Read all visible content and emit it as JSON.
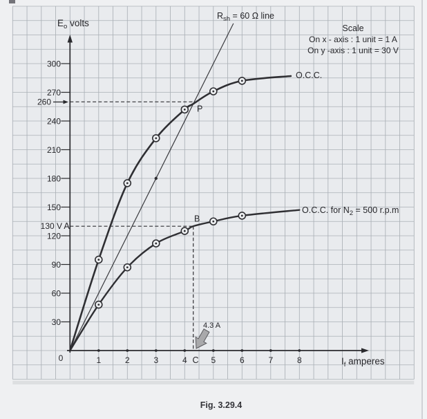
{
  "figure": {
    "caption": "Fig. 3.29.4"
  },
  "chart_data": {
    "type": "line",
    "grid": "on",
    "axes": {
      "x_title": {
        "pre": "I",
        "sub": "f",
        "rest": " amperes"
      },
      "y_title": {
        "pre": "E",
        "sub": "o",
        "rest": " volts"
      },
      "x_ticks": [
        "1",
        "2",
        "3",
        "4",
        "5",
        "6",
        "7",
        "8"
      ],
      "y_ticks": [
        "30",
        "60",
        "90",
        "120",
        "150",
        "180",
        "210",
        "240",
        "270",
        "300"
      ],
      "origin": "0",
      "xlim": [
        0,
        8.6
      ],
      "ylim": [
        0,
        330
      ]
    },
    "scale_note": {
      "title": "Scale",
      "line1": "On x - axis : 1 unit = 1 A",
      "line2": "On y -axis : 1 unit = 30 V"
    },
    "series": [
      {
        "name": "O.C.C.",
        "label": {
          "pre": "O.C.C.",
          "sub": "",
          "rest": ""
        },
        "points": [
          [
            0,
            0
          ],
          [
            1,
            95
          ],
          [
            2,
            175
          ],
          [
            3,
            222
          ],
          [
            4,
            252
          ],
          [
            4.3,
            258
          ],
          [
            5,
            271
          ],
          [
            6,
            282
          ],
          [
            7.7,
            287
          ]
        ],
        "marker_x": [
          1,
          2,
          3,
          4,
          5,
          6
        ]
      },
      {
        "name": "O.C.C. for N2 = 500 r.p.m",
        "label": {
          "pre": "O.C.C. for N",
          "sub": "2",
          "rest": " = 500 r.p.m"
        },
        "points": [
          [
            0,
            0
          ],
          [
            1,
            48
          ],
          [
            2,
            87
          ],
          [
            3,
            112
          ],
          [
            4,
            125
          ],
          [
            4.3,
            130
          ],
          [
            5,
            135
          ],
          [
            6,
            141
          ],
          [
            8,
            147
          ]
        ],
        "marker_x": [
          1,
          2,
          3,
          4,
          5,
          6
        ]
      },
      {
        "name": "Rsh = 60 ohm line",
        "label": {
          "pre": "R",
          "sub": "sh",
          "rest": " = 60 Ω line"
        },
        "points": [
          [
            0,
            0
          ],
          [
            5.7,
            342
          ]
        ],
        "dot": [
          3,
          180
        ]
      }
    ],
    "annotations": {
      "y260": {
        "label": "260",
        "value": 260,
        "x_end": 4.3
      },
      "a130": {
        "label": "130 V",
        "point_label": "A",
        "value": 130,
        "x_end": 4.3
      },
      "vert": {
        "x": 4.3,
        "top_value": 130,
        "point_label": "C"
      },
      "p_label": "P",
      "b_label": "B",
      "field_current": {
        "label": "4.3 A"
      }
    }
  }
}
